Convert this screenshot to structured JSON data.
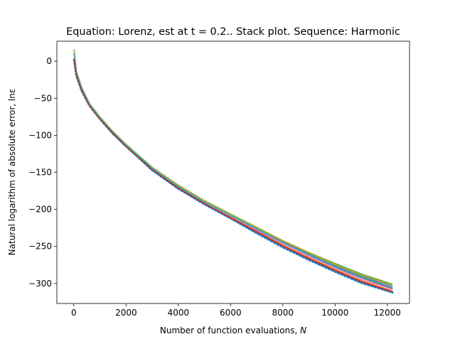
{
  "chart_data": {
    "type": "line",
    "title": "Equation: Lorenz, est at t = 0.2.. Stack plot. Sequence: Harmonic",
    "xlabel": "Number of function evaluations, ",
    "xlabel_var": "N",
    "ylabel": "Natural logarithm of absolute error, lnε",
    "xlim": [
      -650,
      12850
    ],
    "ylim": [
      -327,
      27
    ],
    "xticks": [
      0,
      2000,
      4000,
      6000,
      8000,
      10000,
      12000
    ],
    "xtick_labels": [
      "0",
      "2000",
      "4000",
      "6000",
      "8000",
      "10000",
      "12000"
    ],
    "yticks": [
      0,
      -50,
      -100,
      -150,
      -200,
      -250,
      -300
    ],
    "ytick_labels": [
      "0",
      "−50",
      "−100",
      "−150",
      "−200",
      "−250",
      "−300"
    ],
    "grid": false,
    "legend": "none",
    "x": [
      10,
      100,
      300,
      600,
      1000,
      1500,
      2000,
      3000,
      4000,
      5000,
      6000,
      7000,
      8000,
      9000,
      10000,
      11000,
      12200
    ],
    "series": [
      {
        "color": "#1f77b4",
        "style": "dotted",
        "values": [
          2,
          -20,
          -40,
          -60,
          -78,
          -98,
          -115,
          -147,
          -172,
          -193,
          -212,
          -232,
          -251,
          -268,
          -284,
          -299,
          -312
        ]
      },
      {
        "color": "#ff7f0e",
        "style": "solid",
        "values": [
          5,
          -18,
          -38,
          -59,
          -77,
          -97,
          -114,
          -145,
          -170,
          -192,
          -210,
          -229,
          -248,
          -265,
          -281,
          -296,
          -310
        ]
      },
      {
        "color": "#2ca02c",
        "style": "solid",
        "values": [
          16,
          -14,
          -35,
          -57,
          -75,
          -95,
          -112,
          -143,
          -167,
          -188,
          -206,
          -224,
          -242,
          -258,
          -273,
          -287,
          -301
        ]
      },
      {
        "color": "#9467bd",
        "style": "solid",
        "values": [
          12,
          -15,
          -36,
          -58,
          -76,
          -96,
          -113,
          -144,
          -168,
          -189,
          -207,
          -226,
          -244,
          -260,
          -276,
          -290,
          -305
        ]
      },
      {
        "color": "#8c564b",
        "style": "solid",
        "values": [
          10,
          -16,
          -37,
          -58,
          -76,
          -96,
          -113,
          -144,
          -169,
          -190,
          -208,
          -227,
          -245,
          -262,
          -278,
          -292,
          -307
        ]
      },
      {
        "color": "#e377c2",
        "style": "solid",
        "values": [
          8,
          -17,
          -37,
          -58,
          -76,
          -96,
          -113,
          -145,
          -169,
          -191,
          -209,
          -228,
          -246,
          -263,
          -279,
          -294,
          -308
        ]
      },
      {
        "color": "#7f7f7f",
        "style": "solid",
        "values": [
          14,
          -15,
          -36,
          -57,
          -75,
          -95,
          -113,
          -144,
          -168,
          -189,
          -207,
          -225,
          -243,
          -259,
          -275,
          -289,
          -303
        ]
      },
      {
        "color": "#bcbd22",
        "style": "solid",
        "values": [
          15,
          -14,
          -35,
          -57,
          -75,
          -95,
          -112,
          -143,
          -167,
          -188,
          -206,
          -224,
          -242,
          -258,
          -274,
          -288,
          -302
        ]
      },
      {
        "color": "#17becf",
        "style": "solid",
        "values": [
          11,
          -16,
          -36,
          -58,
          -76,
          -96,
          -113,
          -144,
          -169,
          -190,
          -208,
          -226,
          -245,
          -261,
          -277,
          -291,
          -306
        ]
      },
      {
        "color": "#d62728",
        "style": "solid",
        "values": [
          3,
          -19,
          -39,
          -60,
          -78,
          -97,
          -115,
          -146,
          -171,
          -192,
          -211,
          -230,
          -249,
          -266,
          -282,
          -297,
          -311
        ]
      }
    ]
  }
}
